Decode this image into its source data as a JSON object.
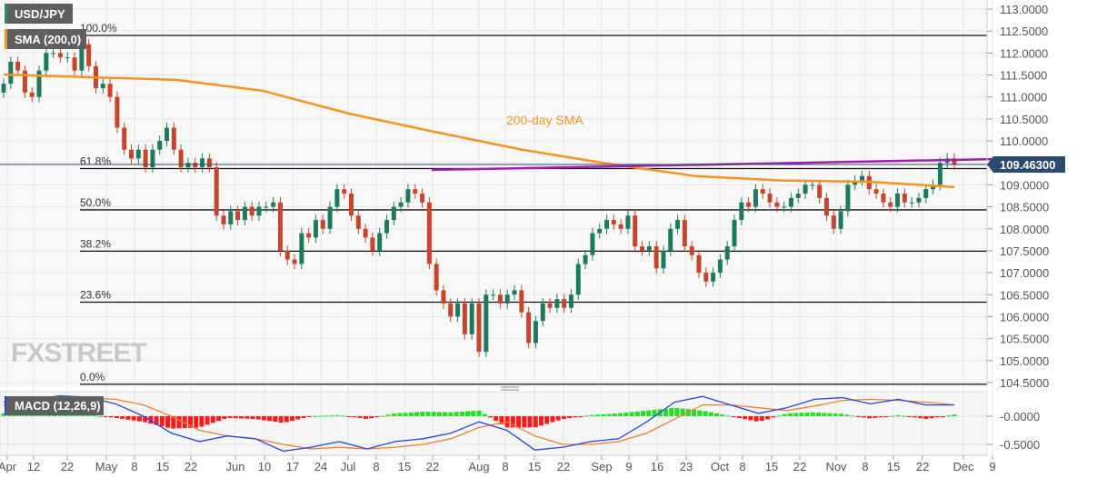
{
  "chart_data": [
    {
      "type": "candlestick",
      "title": "USD/JPY",
      "indicator_label": "SMA (200,0)",
      "annotation": "200-day SMA",
      "watermark": "FXSTREET",
      "current_price": "109.46300",
      "ylim": [
        104.5,
        113.0
      ],
      "y_ticks": [
        "113.0000",
        "112.5000",
        "112.0000",
        "111.5000",
        "111.0000",
        "110.5000",
        "110.0000",
        "109.5000",
        "109.0000",
        "108.5000",
        "108.0000",
        "107.5000",
        "107.0000",
        "106.5000",
        "106.0000",
        "105.5000",
        "105.0000",
        "104.5000"
      ],
      "x_ticks": [
        "Apr",
        "12",
        "22",
        "May",
        "8",
        "15",
        "22",
        "Jun",
        "10",
        "17",
        "24",
        "Jul",
        "8",
        "15",
        "22",
        "Aug",
        "8",
        "15",
        "22",
        "Sep",
        "9",
        "16",
        "23",
        "Oct",
        "8",
        "15",
        "22",
        "Nov",
        "8",
        "15",
        "22",
        "Dec",
        "9"
      ],
      "grid": true,
      "fibonacci": [
        {
          "label": "100.0%",
          "value": 112.4
        },
        {
          "label": "61.8%",
          "value": 109.37
        },
        {
          "label": "50.0%",
          "value": 108.43
        },
        {
          "label": "38.2%",
          "value": 107.49
        },
        {
          "label": "23.6%",
          "value": 106.33
        },
        {
          "label": "0.0%",
          "value": 104.46
        }
      ],
      "trendline": {
        "from": 109.34,
        "to": 109.59
      },
      "closes": [
        111.3,
        111.8,
        111.6,
        111.1,
        111.0,
        111.6,
        112.0,
        112.0,
        111.9,
        111.9,
        111.6,
        112.2,
        111.7,
        111.2,
        111.3,
        111.0,
        110.3,
        109.8,
        109.6,
        109.8,
        109.4,
        109.8,
        110.0,
        110.3,
        109.8,
        109.4,
        109.5,
        109.4,
        109.6,
        109.4,
        108.3,
        108.1,
        108.4,
        108.2,
        108.5,
        108.3,
        108.5,
        108.5,
        108.6,
        107.5,
        107.3,
        107.2,
        107.9,
        107.8,
        108.2,
        108.0,
        108.5,
        108.9,
        108.8,
        108.3,
        108.0,
        107.8,
        107.5,
        107.9,
        108.2,
        108.5,
        108.6,
        108.9,
        108.8,
        108.6,
        107.2,
        106.6,
        106.3,
        106.0,
        106.3,
        105.6,
        106.3,
        105.2,
        106.5,
        106.5,
        106.3,
        106.5,
        106.6,
        106.1,
        105.4,
        105.9,
        106.3,
        106.2,
        106.4,
        106.2,
        106.5,
        107.2,
        107.4,
        107.9,
        108.0,
        108.2,
        108.1,
        108.0,
        108.3,
        107.6,
        107.5,
        107.6,
        107.1,
        107.5,
        108.0,
        108.2,
        107.6,
        107.4,
        107.0,
        106.8,
        107.0,
        107.3,
        107.6,
        108.2,
        108.6,
        108.5,
        108.9,
        108.8,
        108.6,
        108.5,
        108.5,
        108.7,
        108.8,
        109.0,
        109.0,
        108.7,
        108.3,
        108.0,
        108.4,
        109.0,
        109.1,
        109.2,
        108.9,
        108.8,
        108.6,
        108.5,
        108.8,
        108.6,
        108.6,
        108.7,
        108.9,
        109.0,
        109.5,
        109.6,
        109.463
      ],
      "sma200": [
        111.51,
        111.45,
        111.39,
        111.14,
        110.62,
        110.2,
        109.8,
        109.48,
        109.2,
        109.1,
        109.07,
        108.95
      ]
    },
    {
      "type": "line",
      "title": "MACD (12,26,9)",
      "ylim": [
        -0.65,
        0.42
      ],
      "y_ticks": [
        "-0.0000",
        "-0.5000"
      ],
      "macd": [
        0.25,
        0.3,
        0.36,
        0.34,
        0.22,
        0.0,
        -0.3,
        -0.45,
        -0.35,
        -0.4,
        -0.62,
        -0.55,
        -0.45,
        -0.58,
        -0.45,
        -0.4,
        -0.3,
        -0.1,
        -0.25,
        -0.6,
        -0.55,
        -0.45,
        -0.4,
        -0.1,
        0.25,
        0.35,
        0.2,
        0.05,
        0.15,
        0.3,
        0.33,
        0.22,
        0.3,
        0.2,
        0.2
      ],
      "signal": [
        0.2,
        0.22,
        0.28,
        0.32,
        0.3,
        0.2,
        0.0,
        -0.25,
        -0.35,
        -0.4,
        -0.5,
        -0.58,
        -0.55,
        -0.58,
        -0.55,
        -0.5,
        -0.4,
        -0.2,
        -0.1,
        -0.35,
        -0.5,
        -0.5,
        -0.45,
        -0.3,
        -0.05,
        0.2,
        0.2,
        0.15,
        0.1,
        0.18,
        0.28,
        0.3,
        0.28,
        0.25,
        0.2
      ],
      "histogram": [
        0.05,
        0.04,
        0.06,
        0.03,
        -0.03,
        -0.1,
        -0.22,
        -0.2,
        -0.03,
        -0.05,
        -0.12,
        0.0,
        0.02,
        -0.05,
        0.05,
        0.08,
        0.07,
        0.1,
        -0.2,
        -0.2,
        -0.05,
        0.02,
        0.05,
        0.1,
        0.15,
        0.1,
        0.0,
        -0.1,
        0.05,
        0.07,
        0.04,
        -0.04,
        0.02,
        -0.05,
        0.03
      ]
    }
  ],
  "colors": {
    "up": "#1e7a5e",
    "down": "#c8442a",
    "sma": "#f7931e",
    "trend": "#a020b0",
    "macd": "#2244ee",
    "signal": "#f57c2a",
    "hist_up": "#22e022",
    "hist_down": "#ff1a1a",
    "price_badge": "#2b4a6e",
    "watermark": "#d4a25a"
  }
}
